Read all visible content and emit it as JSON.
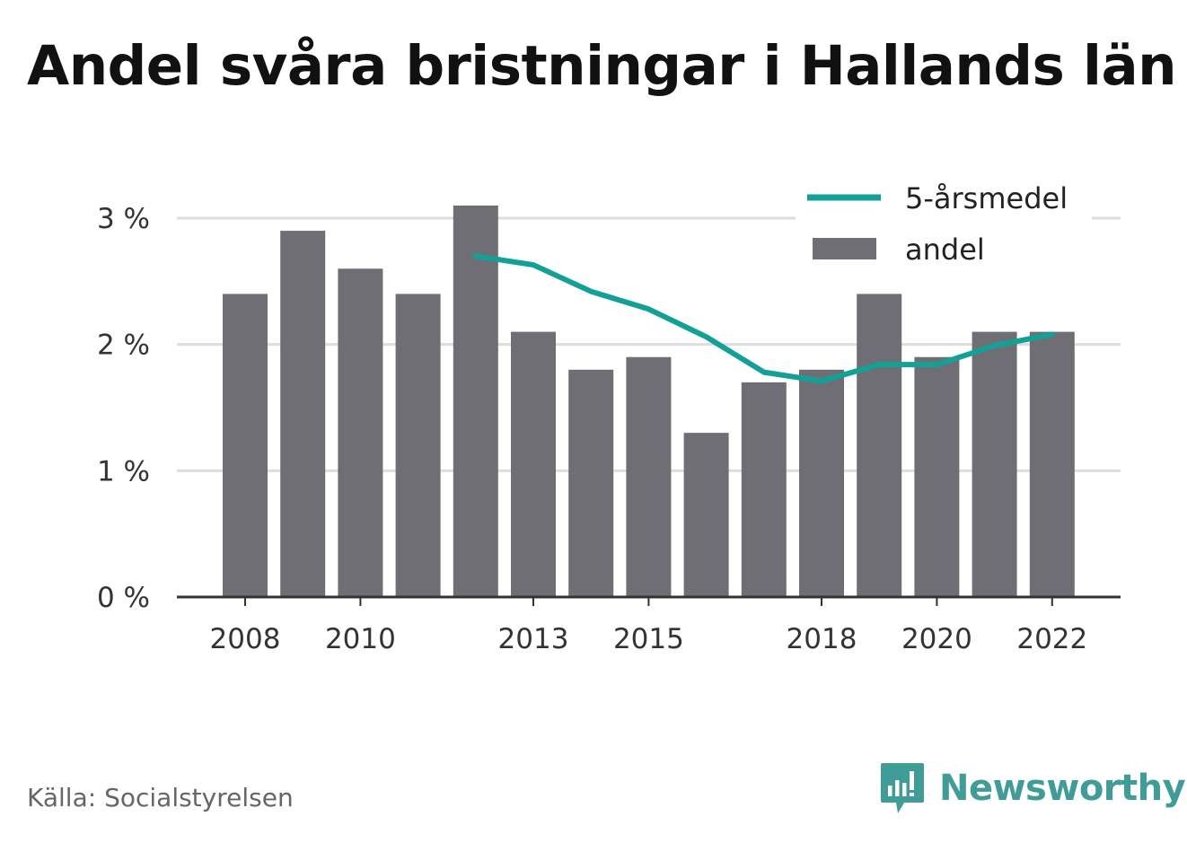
{
  "title": "Andel svåra bristningar i Hallands län",
  "source": "Källa: Socialstyrelsen",
  "brand": {
    "name": "Newsworthy",
    "icon": "newsworthy-logo-icon",
    "color": "#3f9c96"
  },
  "colors": {
    "bar": "#6f6e75",
    "line": "#13a096",
    "grid": "#dddddd",
    "axis": "#333333"
  },
  "chart_data": {
    "type": "bar",
    "title": "Andel svåra bristningar i Hallands län",
    "xlabel": "",
    "ylabel": "",
    "ylim": [
      0,
      3
    ],
    "yticks": [
      0,
      1,
      2,
      3
    ],
    "ytick_labels": [
      "0 %",
      "1 %",
      "2 %",
      "3 %"
    ],
    "xtick_labels": [
      "2008",
      "2010",
      "2013",
      "2015",
      "2018",
      "2020",
      "2022"
    ],
    "grid": true,
    "legend_position": "top-right",
    "categories": [
      2008,
      2009,
      2010,
      2011,
      2012,
      2013,
      2014,
      2015,
      2016,
      2017,
      2018,
      2019,
      2020,
      2021,
      2022
    ],
    "series": [
      {
        "name": "andel",
        "type": "bar",
        "values": [
          2.4,
          2.9,
          2.6,
          2.4,
          3.1,
          2.1,
          1.8,
          1.9,
          1.3,
          1.7,
          1.8,
          2.4,
          1.9,
          2.1,
          2.1
        ]
      },
      {
        "name": "5-årsmedel",
        "type": "line",
        "values": [
          null,
          null,
          null,
          null,
          2.7,
          2.63,
          2.42,
          2.28,
          2.06,
          1.78,
          1.71,
          1.84,
          1.84,
          1.99,
          2.08
        ]
      }
    ]
  }
}
